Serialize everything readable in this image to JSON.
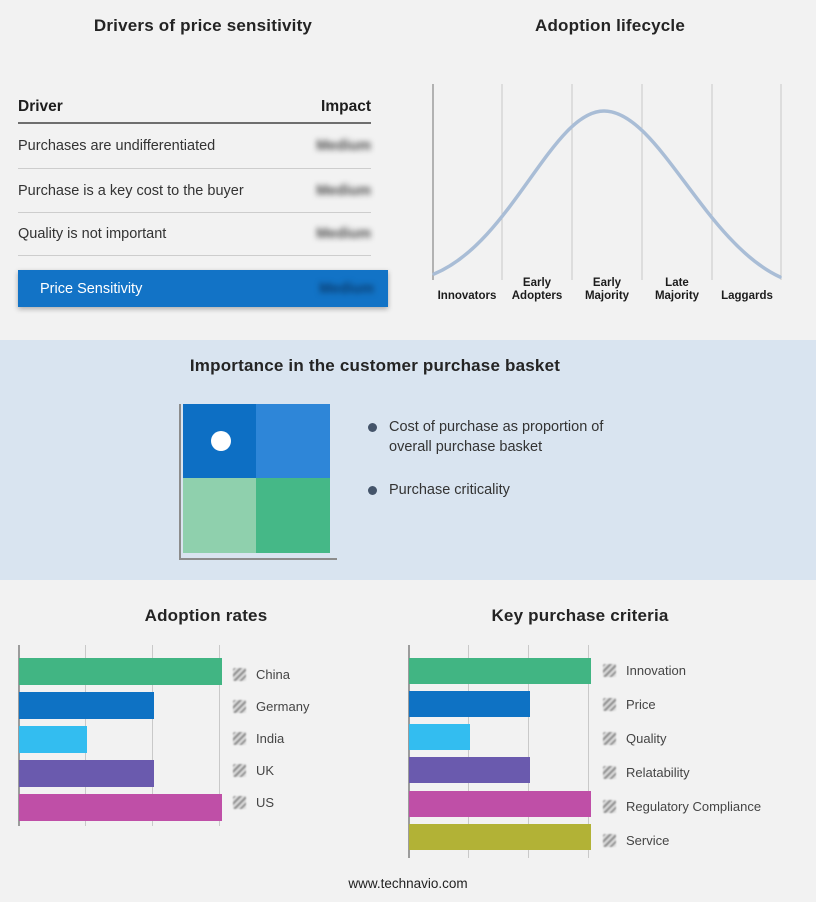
{
  "drivers": {
    "title": "Drivers of price sensitivity",
    "col_driver": "Driver",
    "col_impact": "Impact",
    "rows": [
      {
        "driver": "Purchases are undifferentiated",
        "impact": "Medium"
      },
      {
        "driver": "Purchase is a key cost to the buyer",
        "impact": "Medium"
      },
      {
        "driver": "Quality is not important",
        "impact": "Medium"
      }
    ],
    "highlight": {
      "driver": "Price Sensitivity",
      "impact": "Medium",
      "bg": "#1273c6"
    }
  },
  "lifecycle": {
    "curve_color": "#a9bdd6"
  },
  "basket": {
    "title": "Importance in the customer purchase basket",
    "bullets": [
      "Cost of purchase as proportion of overall purchase basket",
      "Purchase criticality"
    ],
    "band_bg": "#d9e4f0",
    "quadrants": {
      "top_left": "#0d6fc4",
      "top_right": "#2e86d8",
      "bottom_left": "#8fd0ad",
      "bottom_right": "#45b887"
    }
  },
  "footer": "www.technavio.com",
  "chart_data": [
    {
      "type": "bar",
      "orientation": "horizontal",
      "title": "Adoption rates",
      "categories": [
        "China",
        "Germany",
        "India",
        "UK",
        "US"
      ],
      "values": [
        3,
        2,
        1,
        2,
        3
      ],
      "xlim": [
        0,
        3
      ],
      "colors": [
        "#41b583",
        "#0e72c4",
        "#33bdf0",
        "#6a5aae",
        "#bf4fa7"
      ],
      "grid": true,
      "legend_position": "right"
    },
    {
      "type": "bar",
      "orientation": "horizontal",
      "title": "Key purchase criteria",
      "categories": [
        "Innovation",
        "Price",
        "Quality",
        "Relatability",
        "Regulatory Compliance",
        "Service"
      ],
      "values": [
        3,
        2,
        1,
        2,
        3,
        3
      ],
      "xlim": [
        0,
        3
      ],
      "colors": [
        "#41b583",
        "#0e72c4",
        "#33bdf0",
        "#6a5aae",
        "#bf4fa7",
        "#b2b236"
      ],
      "grid": true,
      "legend_position": "right"
    },
    {
      "type": "line",
      "title": "Adoption lifecycle",
      "categories": [
        "Innovators",
        "Early Adopters",
        "Early Majority",
        "Late Majority",
        "Laggards"
      ],
      "shape": "bell",
      "grid": true,
      "legend_position": "none"
    }
  ]
}
